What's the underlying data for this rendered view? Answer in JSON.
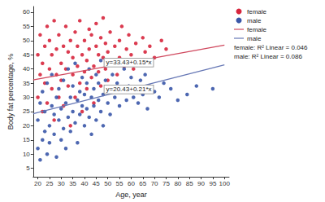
{
  "chart_data": {
    "type": "scatter",
    "x_label": "Age, year",
    "y_label": "Body fat percentage, %",
    "xlim": [
      18,
      102
    ],
    "ylim": [
      2,
      62
    ],
    "xticks": [
      20,
      25,
      30,
      35,
      40,
      45,
      50,
      55,
      60,
      65,
      70,
      75,
      80,
      85,
      90,
      95,
      100
    ],
    "yticks": [
      5,
      10,
      15,
      20,
      25,
      30,
      35,
      40,
      45,
      50,
      55,
      60
    ],
    "grid": false,
    "legend": "upper right",
    "series": [
      {
        "name": "female",
        "type": "scatter",
        "marker": "circle",
        "color": "#d7263d",
        "x": [
          20,
          20,
          21,
          21,
          22,
          22,
          23,
          23,
          24,
          24,
          25,
          25,
          26,
          26,
          27,
          27,
          28,
          28,
          29,
          29,
          30,
          30,
          31,
          31,
          32,
          32,
          33,
          33,
          34,
          34,
          35,
          35,
          36,
          36,
          37,
          37,
          38,
          38,
          39,
          39,
          40,
          40,
          41,
          41,
          42,
          42,
          43,
          43,
          44,
          44,
          45,
          45,
          46,
          46,
          47,
          47,
          48,
          48,
          49,
          49,
          50,
          50,
          51,
          52,
          53,
          54,
          55,
          55,
          56,
          57,
          58,
          59,
          60,
          61,
          62,
          63,
          65,
          66,
          68,
          70,
          73,
          75
        ],
        "values": [
          45,
          30,
          52,
          38,
          25,
          42,
          48,
          35,
          55,
          28,
          40,
          50,
          33,
          45,
          22,
          57,
          38,
          47,
          30,
          52,
          42,
          36,
          48,
          27,
          55,
          40,
          34,
          46,
          50,
          20,
          44,
          38,
          53,
          30,
          41,
          48,
          35,
          57,
          45,
          25,
          50,
          39,
          43,
          33,
          54,
          47,
          37,
          52,
          41,
          28,
          48,
          56,
          39,
          45,
          51,
          34,
          44,
          58,
          40,
          49,
          46,
          36,
          53,
          42,
          48,
          38,
          50,
          44,
          55,
          41,
          47,
          52,
          45,
          40,
          49,
          43,
          51,
          46,
          48,
          44,
          50,
          47
        ]
      },
      {
        "name": "male",
        "type": "scatter",
        "marker": "circle",
        "color": "#3a57a8",
        "x": [
          20,
          20,
          21,
          21,
          22,
          22,
          23,
          23,
          24,
          24,
          25,
          25,
          26,
          26,
          27,
          27,
          28,
          28,
          29,
          29,
          30,
          30,
          31,
          31,
          32,
          32,
          33,
          33,
          34,
          34,
          35,
          35,
          36,
          36,
          37,
          37,
          38,
          38,
          39,
          39,
          40,
          40,
          41,
          41,
          42,
          42,
          43,
          43,
          44,
          44,
          45,
          45,
          46,
          46,
          47,
          47,
          48,
          48,
          49,
          50,
          50,
          51,
          52,
          53,
          54,
          55,
          56,
          57,
          58,
          59,
          60,
          61,
          62,
          63,
          64,
          65,
          66,
          67,
          68,
          70,
          72,
          74,
          77,
          80,
          84,
          88,
          95
        ],
        "values": [
          12,
          22,
          8,
          28,
          15,
          32,
          18,
          25,
          10,
          35,
          20,
          14,
          27,
          38,
          17,
          24,
          30,
          9,
          22,
          33,
          26,
          15,
          19,
          36,
          28,
          12,
          23,
          40,
          30,
          18,
          25,
          34,
          21,
          42,
          29,
          14,
          32,
          24,
          27,
          37,
          20,
          31,
          35,
          26,
          23,
          40,
          30,
          17,
          33,
          27,
          38,
          22,
          29,
          35,
          25,
          43,
          31,
          20,
          36,
          28,
          33,
          24,
          38,
          30,
          35,
          27,
          32,
          40,
          29,
          34,
          37,
          30,
          33,
          28,
          36,
          31,
          38,
          26,
          34,
          32,
          30,
          35,
          33,
          29,
          31,
          34,
          33
        ]
      },
      {
        "name": "female",
        "type": "line",
        "line_style": "solid",
        "color": "#d0485e",
        "annotation": "y=33.43+0.15*x",
        "legend_note": "female: R² Linear = 0.046",
        "x": [
          18,
          100
        ],
        "values": [
          36.13,
          48.43
        ]
      },
      {
        "name": "male",
        "type": "line",
        "line_style": "solid",
        "color": "#6677b5",
        "annotation": "y=20.43+0.21*x",
        "legend_note": "male: R² Linear = 0.086",
        "x": [
          18,
          100
        ],
        "values": [
          24.21,
          41.43
        ]
      }
    ]
  }
}
